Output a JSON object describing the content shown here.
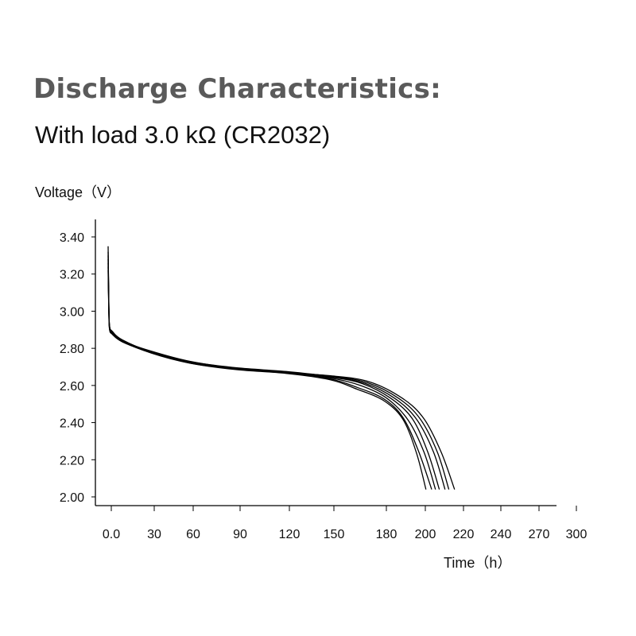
{
  "header": {
    "title": "Discharge Characteristics:",
    "subtitle": "With load 3.0 kΩ (CR2032)"
  },
  "chart_data": {
    "type": "line",
    "title": "Discharge Characteristics:",
    "subtitle": "With load 3.0 kΩ (CR2032)",
    "ylabel": "Voltage（V）",
    "xlabel": "Time（h）",
    "x_ticks": [
      0,
      30,
      60,
      90,
      120,
      150,
      180,
      200,
      220,
      240,
      270,
      300
    ],
    "x_tick_labels": [
      "0.0",
      "30",
      "60",
      "90",
      "120",
      "150",
      "180",
      "200",
      "220",
      "240",
      "270",
      "300"
    ],
    "y_ticks": [
      2.0,
      2.2,
      2.4,
      2.6,
      2.8,
      3.0,
      3.2,
      3.4
    ],
    "y_tick_labels": [
      "2.00",
      "2.20",
      "2.40",
      "2.60",
      "2.80",
      "3.00",
      "3.20",
      "3.40"
    ],
    "xlim": [
      0,
      300
    ],
    "ylim": [
      2.0,
      3.4
    ],
    "grid": false,
    "line_color": "#000000",
    "series": [
      {
        "values": [
          [
            0,
            3.35
          ],
          [
            0.5,
            3.05
          ],
          [
            1,
            2.92
          ],
          [
            3,
            2.89
          ],
          [
            10,
            2.84
          ],
          [
            30,
            2.775
          ],
          [
            60,
            2.72
          ],
          [
            90,
            2.685
          ],
          [
            120,
            2.665
          ],
          [
            150,
            2.63
          ],
          [
            165,
            2.58
          ],
          [
            180,
            2.52
          ],
          [
            190,
            2.42
          ],
          [
            197,
            2.24
          ],
          [
            202,
            2.04
          ]
        ]
      },
      {
        "values": [
          [
            0,
            3.32
          ],
          [
            0.5,
            3.04
          ],
          [
            1,
            2.91
          ],
          [
            3,
            2.885
          ],
          [
            10,
            2.835
          ],
          [
            30,
            2.78
          ],
          [
            60,
            2.725
          ],
          [
            90,
            2.69
          ],
          [
            120,
            2.67
          ],
          [
            150,
            2.635
          ],
          [
            165,
            2.59
          ],
          [
            180,
            2.53
          ],
          [
            190,
            2.43
          ],
          [
            198,
            2.25
          ],
          [
            205,
            2.04
          ]
        ]
      },
      {
        "values": [
          [
            0,
            3.3
          ],
          [
            0.5,
            3.03
          ],
          [
            1,
            2.92
          ],
          [
            3,
            2.89
          ],
          [
            10,
            2.845
          ],
          [
            30,
            2.78
          ],
          [
            60,
            2.72
          ],
          [
            90,
            2.688
          ],
          [
            120,
            2.668
          ],
          [
            150,
            2.64
          ],
          [
            167,
            2.6
          ],
          [
            182,
            2.53
          ],
          [
            193,
            2.41
          ],
          [
            201,
            2.24
          ],
          [
            207,
            2.04
          ]
        ]
      },
      {
        "values": [
          [
            0,
            3.28
          ],
          [
            0.5,
            3.02
          ],
          [
            1,
            2.915
          ],
          [
            3,
            2.89
          ],
          [
            10,
            2.84
          ],
          [
            30,
            2.785
          ],
          [
            60,
            2.73
          ],
          [
            90,
            2.692
          ],
          [
            120,
            2.672
          ],
          [
            150,
            2.645
          ],
          [
            168,
            2.61
          ],
          [
            184,
            2.53
          ],
          [
            195,
            2.42
          ],
          [
            203,
            2.24
          ],
          [
            209,
            2.04
          ]
        ]
      },
      {
        "values": [
          [
            0,
            3.26
          ],
          [
            0.5,
            3.01
          ],
          [
            1,
            2.91
          ],
          [
            3,
            2.885
          ],
          [
            10,
            2.842
          ],
          [
            30,
            2.782
          ],
          [
            60,
            2.728
          ],
          [
            90,
            2.695
          ],
          [
            120,
            2.675
          ],
          [
            150,
            2.648
          ],
          [
            170,
            2.61
          ],
          [
            186,
            2.53
          ],
          [
            197,
            2.42
          ],
          [
            206,
            2.24
          ],
          [
            212,
            2.04
          ]
        ]
      },
      {
        "values": [
          [
            0,
            3.24
          ],
          [
            0.5,
            3.0
          ],
          [
            1,
            2.905
          ],
          [
            3,
            2.88
          ],
          [
            10,
            2.838
          ],
          [
            30,
            2.778
          ],
          [
            60,
            2.725
          ],
          [
            90,
            2.69
          ],
          [
            120,
            2.67
          ],
          [
            150,
            2.65
          ],
          [
            171,
            2.615
          ],
          [
            188,
            2.53
          ],
          [
            199,
            2.42
          ],
          [
            208,
            2.24
          ],
          [
            214,
            2.04
          ]
        ]
      },
      {
        "values": [
          [
            0,
            3.22
          ],
          [
            0.5,
            2.99
          ],
          [
            1,
            2.9
          ],
          [
            3,
            2.875
          ],
          [
            10,
            2.835
          ],
          [
            30,
            2.776
          ],
          [
            60,
            2.722
          ],
          [
            90,
            2.688
          ],
          [
            120,
            2.668
          ],
          [
            150,
            2.652
          ],
          [
            172,
            2.62
          ],
          [
            190,
            2.53
          ],
          [
            201,
            2.42
          ],
          [
            210,
            2.24
          ],
          [
            217,
            2.04
          ]
        ]
      }
    ]
  }
}
